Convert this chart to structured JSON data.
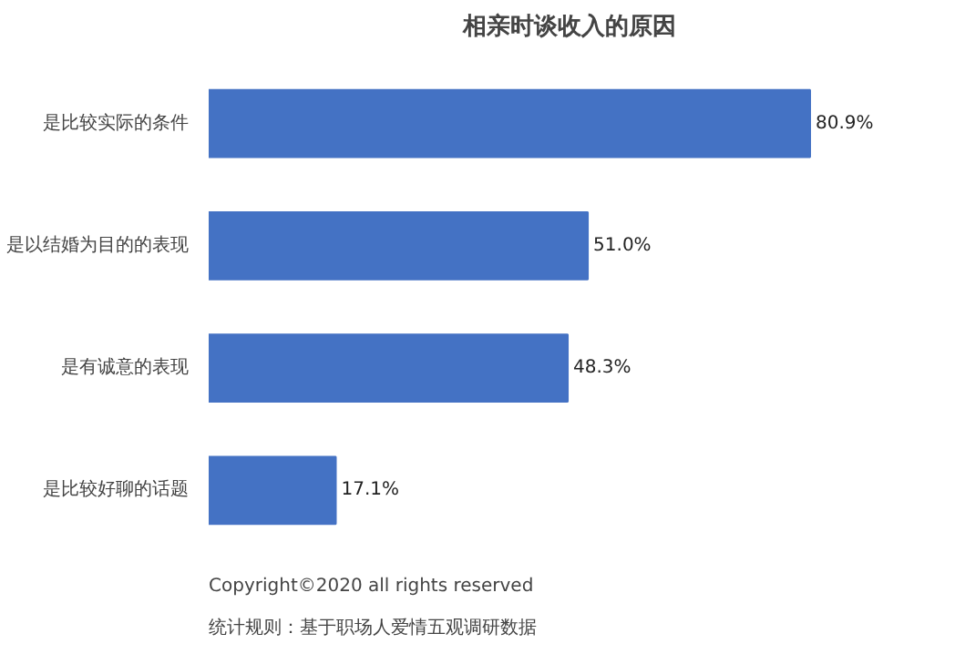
{
  "chart_data": {
    "type": "bar",
    "orientation": "horizontal",
    "title": "相亲时谈收入的原因",
    "categories": [
      "是比较实际的条件",
      "是以结婚为目的的表现",
      "是有诚意的表现",
      "是比较好聊的话题"
    ],
    "values": [
      80.9,
      51.0,
      48.3,
      17.1
    ],
    "value_labels": [
      "80.9%",
      "51.0%",
      "48.3%",
      "17.1%"
    ],
    "color": "#4472c4",
    "grid": false,
    "tick_labels": "y",
    "annotations": [
      "Copyright©2020 all rights reserved",
      "统计规则：基于职场人爱情五观调研数据"
    ]
  }
}
